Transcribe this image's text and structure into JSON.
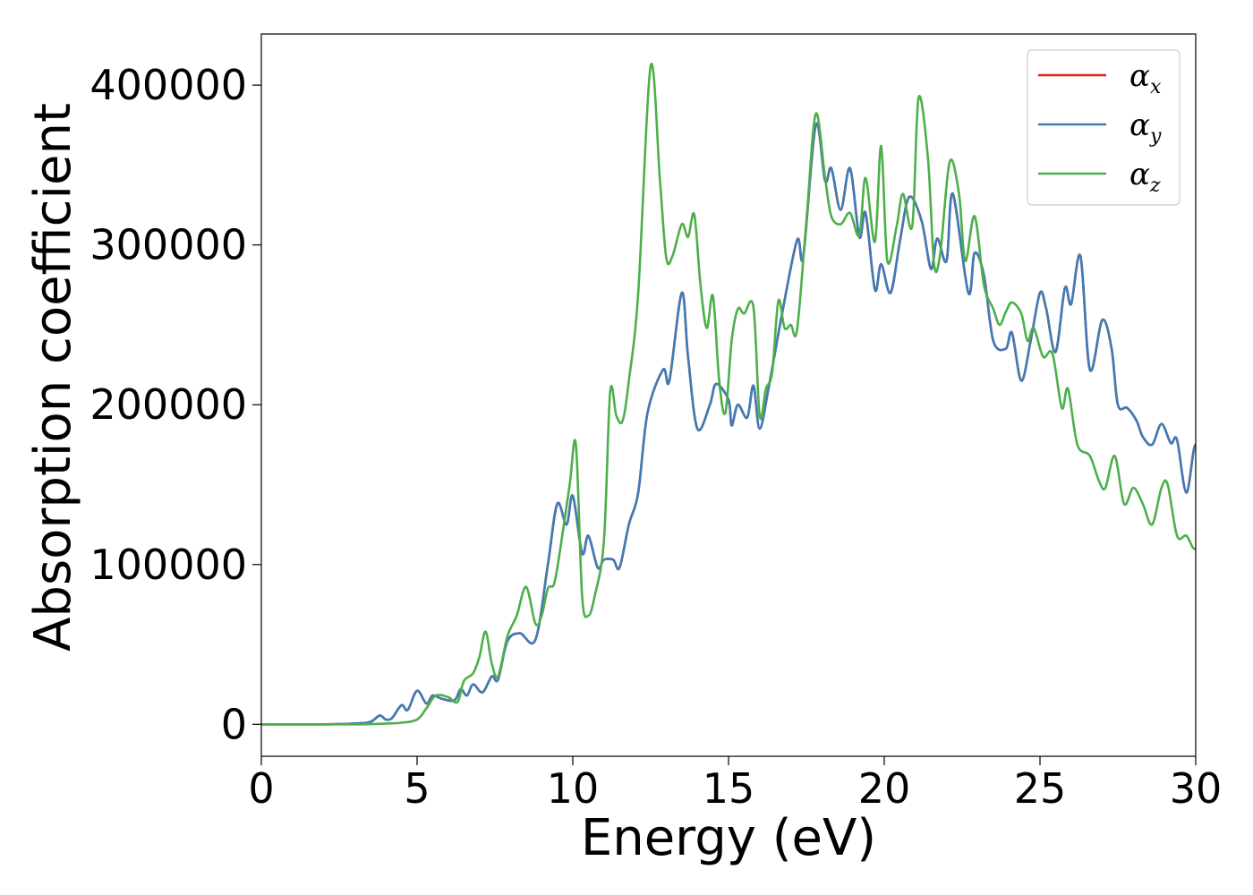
{
  "chart_data": {
    "type": "line",
    "xlabel": "Energy (eV)",
    "ylabel": "Absorption coefficient",
    "xlim": [
      0,
      30
    ],
    "ylim": [
      -20000,
      432000
    ],
    "xticks": [
      0,
      5,
      10,
      15,
      20,
      25,
      30
    ],
    "xtick_labels": [
      "0",
      "5",
      "10",
      "15",
      "20",
      "25",
      "30"
    ],
    "yticks": [
      0,
      100000,
      200000,
      300000,
      400000
    ],
    "ytick_labels": [
      "0",
      "100000",
      "200000",
      "300000",
      "400000"
    ],
    "grid": false,
    "legend_position": "top-right",
    "series": [
      {
        "name": "α_x",
        "legend_base": "α",
        "legend_sub": "x",
        "color": "#e41a1c",
        "points": [
          [
            0,
            0
          ],
          [
            2,
            0
          ],
          [
            3,
            500
          ],
          [
            3.5,
            1500
          ],
          [
            3.8,
            5500
          ],
          [
            4.0,
            3000
          ],
          [
            4.2,
            4000
          ],
          [
            4.5,
            12000
          ],
          [
            4.7,
            9000
          ],
          [
            5.0,
            21000
          ],
          [
            5.3,
            13000
          ],
          [
            5.5,
            18000
          ],
          [
            5.8,
            16000
          ],
          [
            6.2,
            15000
          ],
          [
            6.4,
            22000
          ],
          [
            6.6,
            18000
          ],
          [
            6.8,
            25000
          ],
          [
            7.1,
            20000
          ],
          [
            7.4,
            30000
          ],
          [
            7.6,
            28000
          ],
          [
            7.9,
            52000
          ],
          [
            8.3,
            57000
          ],
          [
            8.8,
            53000
          ],
          [
            9.2,
            100000
          ],
          [
            9.5,
            138000
          ],
          [
            9.8,
            125000
          ],
          [
            10.0,
            143000
          ],
          [
            10.3,
            107000
          ],
          [
            10.5,
            118000
          ],
          [
            10.8,
            98000
          ],
          [
            11.0,
            103000
          ],
          [
            11.3,
            103000
          ],
          [
            11.5,
            98000
          ],
          [
            11.8,
            125000
          ],
          [
            12.1,
            145000
          ],
          [
            12.4,
            195000
          ],
          [
            12.9,
            222000
          ],
          [
            13.1,
            215000
          ],
          [
            13.5,
            270000
          ],
          [
            13.7,
            230000
          ],
          [
            14.0,
            185000
          ],
          [
            14.4,
            200000
          ],
          [
            14.6,
            213000
          ],
          [
            15.0,
            203000
          ],
          [
            15.1,
            187000
          ],
          [
            15.3,
            200000
          ],
          [
            15.6,
            192000
          ],
          [
            15.8,
            212000
          ],
          [
            16.0,
            185000
          ],
          [
            16.3,
            212000
          ],
          [
            16.7,
            255000
          ],
          [
            17.2,
            303000
          ],
          [
            17.4,
            293000
          ],
          [
            17.8,
            375000
          ],
          [
            18.1,
            340000
          ],
          [
            18.3,
            348000
          ],
          [
            18.6,
            322000
          ],
          [
            18.9,
            348000
          ],
          [
            19.2,
            305000
          ],
          [
            19.4,
            320000
          ],
          [
            19.7,
            272000
          ],
          [
            19.9,
            288000
          ],
          [
            20.2,
            270000
          ],
          [
            20.5,
            302000
          ],
          [
            20.8,
            330000
          ],
          [
            21.2,
            315000
          ],
          [
            21.5,
            285000
          ],
          [
            21.7,
            304000
          ],
          [
            22.0,
            290000
          ],
          [
            22.2,
            332000
          ],
          [
            22.7,
            270000
          ],
          [
            22.9,
            295000
          ],
          [
            23.2,
            281000
          ],
          [
            23.5,
            240000
          ],
          [
            23.9,
            235000
          ],
          [
            24.1,
            245000
          ],
          [
            24.4,
            215000
          ],
          [
            24.7,
            240000
          ],
          [
            25.0,
            270000
          ],
          [
            25.2,
            260000
          ],
          [
            25.5,
            233000
          ],
          [
            25.8,
            273000
          ],
          [
            26.0,
            263000
          ],
          [
            26.3,
            293000
          ],
          [
            26.6,
            222000
          ],
          [
            27.0,
            253000
          ],
          [
            27.3,
            235000
          ],
          [
            27.5,
            200000
          ],
          [
            27.8,
            198000
          ],
          [
            28.1,
            190000
          ],
          [
            28.3,
            180000
          ],
          [
            28.6,
            175000
          ],
          [
            28.9,
            188000
          ],
          [
            29.2,
            176000
          ],
          [
            29.4,
            178000
          ],
          [
            29.7,
            145000
          ],
          [
            30.0,
            175000
          ],
          [
            30.3,
            145000
          ]
        ]
      },
      {
        "name": "α_y",
        "legend_base": "α",
        "legend_sub": "y",
        "color": "#3e7cb8",
        "points": [
          [
            0,
            0
          ],
          [
            2,
            0
          ],
          [
            3,
            500
          ],
          [
            3.5,
            1500
          ],
          [
            3.8,
            5500
          ],
          [
            4.0,
            3000
          ],
          [
            4.2,
            4000
          ],
          [
            4.5,
            12000
          ],
          [
            4.7,
            9000
          ],
          [
            5.0,
            21000
          ],
          [
            5.3,
            13000
          ],
          [
            5.5,
            18000
          ],
          [
            5.8,
            16000
          ],
          [
            6.2,
            15000
          ],
          [
            6.4,
            22000
          ],
          [
            6.6,
            18000
          ],
          [
            6.8,
            25000
          ],
          [
            7.1,
            20000
          ],
          [
            7.4,
            30000
          ],
          [
            7.6,
            28000
          ],
          [
            7.9,
            52000
          ],
          [
            8.3,
            57000
          ],
          [
            8.8,
            53000
          ],
          [
            9.2,
            100000
          ],
          [
            9.5,
            138000
          ],
          [
            9.8,
            125000
          ],
          [
            10.0,
            143000
          ],
          [
            10.3,
            107000
          ],
          [
            10.5,
            118000
          ],
          [
            10.8,
            98000
          ],
          [
            11.0,
            103000
          ],
          [
            11.3,
            103000
          ],
          [
            11.5,
            98000
          ],
          [
            11.8,
            125000
          ],
          [
            12.1,
            145000
          ],
          [
            12.4,
            195000
          ],
          [
            12.9,
            222000
          ],
          [
            13.1,
            215000
          ],
          [
            13.5,
            270000
          ],
          [
            13.7,
            230000
          ],
          [
            14.0,
            185000
          ],
          [
            14.4,
            200000
          ],
          [
            14.6,
            213000
          ],
          [
            15.0,
            203000
          ],
          [
            15.1,
            187000
          ],
          [
            15.3,
            200000
          ],
          [
            15.6,
            192000
          ],
          [
            15.8,
            212000
          ],
          [
            16.0,
            185000
          ],
          [
            16.3,
            212000
          ],
          [
            16.7,
            255000
          ],
          [
            17.2,
            303000
          ],
          [
            17.4,
            293000
          ],
          [
            17.8,
            375000
          ],
          [
            18.1,
            340000
          ],
          [
            18.3,
            348000
          ],
          [
            18.6,
            322000
          ],
          [
            18.9,
            348000
          ],
          [
            19.2,
            305000
          ],
          [
            19.4,
            320000
          ],
          [
            19.7,
            272000
          ],
          [
            19.9,
            288000
          ],
          [
            20.2,
            270000
          ],
          [
            20.5,
            302000
          ],
          [
            20.8,
            330000
          ],
          [
            21.2,
            315000
          ],
          [
            21.5,
            285000
          ],
          [
            21.7,
            304000
          ],
          [
            22.0,
            290000
          ],
          [
            22.2,
            332000
          ],
          [
            22.7,
            270000
          ],
          [
            22.9,
            295000
          ],
          [
            23.2,
            281000
          ],
          [
            23.5,
            240000
          ],
          [
            23.9,
            235000
          ],
          [
            24.1,
            245000
          ],
          [
            24.4,
            215000
          ],
          [
            24.7,
            240000
          ],
          [
            25.0,
            270000
          ],
          [
            25.2,
            260000
          ],
          [
            25.5,
            233000
          ],
          [
            25.8,
            273000
          ],
          [
            26.0,
            263000
          ],
          [
            26.3,
            293000
          ],
          [
            26.6,
            222000
          ],
          [
            27.0,
            253000
          ],
          [
            27.3,
            235000
          ],
          [
            27.5,
            200000
          ],
          [
            27.8,
            198000
          ],
          [
            28.1,
            190000
          ],
          [
            28.3,
            180000
          ],
          [
            28.6,
            175000
          ],
          [
            28.9,
            188000
          ],
          [
            29.2,
            176000
          ],
          [
            29.4,
            178000
          ],
          [
            29.7,
            145000
          ],
          [
            30.0,
            175000
          ],
          [
            30.3,
            145000
          ]
        ]
      },
      {
        "name": "α_z",
        "legend_base": "α",
        "legend_sub": "z",
        "color": "#4daf4a",
        "points": [
          [
            0,
            0
          ],
          [
            3,
            0
          ],
          [
            4,
            500
          ],
          [
            4.5,
            1000
          ],
          [
            5.0,
            3000
          ],
          [
            5.3,
            10000
          ],
          [
            5.6,
            18000
          ],
          [
            6.0,
            17000
          ],
          [
            6.3,
            14000
          ],
          [
            6.5,
            27000
          ],
          [
            6.8,
            32000
          ],
          [
            7.0,
            42000
          ],
          [
            7.2,
            58000
          ],
          [
            7.4,
            38000
          ],
          [
            7.6,
            30000
          ],
          [
            7.9,
            55000
          ],
          [
            8.2,
            68000
          ],
          [
            8.5,
            86000
          ],
          [
            8.8,
            63000
          ],
          [
            9.0,
            68000
          ],
          [
            9.2,
            85000
          ],
          [
            9.4,
            88000
          ],
          [
            9.6,
            110000
          ],
          [
            9.9,
            150000
          ],
          [
            10.1,
            175000
          ],
          [
            10.3,
            80000
          ],
          [
            10.5,
            68000
          ],
          [
            10.7,
            80000
          ],
          [
            11.0,
            115000
          ],
          [
            11.2,
            208000
          ],
          [
            11.4,
            193000
          ],
          [
            11.6,
            190000
          ],
          [
            11.8,
            215000
          ],
          [
            12.1,
            270000
          ],
          [
            12.5,
            412000
          ],
          [
            12.8,
            340000
          ],
          [
            13.0,
            292000
          ],
          [
            13.2,
            293000
          ],
          [
            13.5,
            313000
          ],
          [
            13.7,
            305000
          ],
          [
            13.9,
            319000
          ],
          [
            14.1,
            275000
          ],
          [
            14.3,
            248000
          ],
          [
            14.5,
            268000
          ],
          [
            14.7,
            215000
          ],
          [
            14.9,
            195000
          ],
          [
            15.1,
            240000
          ],
          [
            15.3,
            260000
          ],
          [
            15.5,
            257000
          ],
          [
            15.8,
            261000
          ],
          [
            16.0,
            193000
          ],
          [
            16.2,
            210000
          ],
          [
            16.4,
            220000
          ],
          [
            16.6,
            265000
          ],
          [
            16.8,
            248000
          ],
          [
            17.0,
            250000
          ],
          [
            17.2,
            247000
          ],
          [
            17.5,
            315000
          ],
          [
            17.8,
            382000
          ],
          [
            18.1,
            342000
          ],
          [
            18.3,
            318000
          ],
          [
            18.6,
            313000
          ],
          [
            18.9,
            320000
          ],
          [
            19.2,
            306000
          ],
          [
            19.4,
            342000
          ],
          [
            19.7,
            302000
          ],
          [
            19.9,
            362000
          ],
          [
            20.1,
            290000
          ],
          [
            20.4,
            312000
          ],
          [
            20.6,
            332000
          ],
          [
            20.9,
            312000
          ],
          [
            21.1,
            392000
          ],
          [
            21.4,
            355000
          ],
          [
            21.6,
            288000
          ],
          [
            21.8,
            295000
          ],
          [
            22.1,
            352000
          ],
          [
            22.4,
            332000
          ],
          [
            22.6,
            290000
          ],
          [
            22.9,
            318000
          ],
          [
            23.2,
            275000
          ],
          [
            23.5,
            260000
          ],
          [
            23.7,
            250000
          ],
          [
            23.9,
            258000
          ],
          [
            24.1,
            264000
          ],
          [
            24.4,
            257000
          ],
          [
            24.6,
            240000
          ],
          [
            24.8,
            248000
          ],
          [
            25.1,
            230000
          ],
          [
            25.4,
            232000
          ],
          [
            25.7,
            198000
          ],
          [
            25.9,
            210000
          ],
          [
            26.2,
            175000
          ],
          [
            26.6,
            168000
          ],
          [
            26.9,
            152000
          ],
          [
            27.1,
            148000
          ],
          [
            27.4,
            168000
          ],
          [
            27.7,
            138000
          ],
          [
            28.0,
            148000
          ],
          [
            28.3,
            138000
          ],
          [
            28.6,
            125000
          ],
          [
            28.9,
            148000
          ],
          [
            29.1,
            150000
          ],
          [
            29.4,
            118000
          ],
          [
            29.7,
            118000
          ],
          [
            30.0,
            110000
          ],
          [
            30.3,
            130000
          ]
        ]
      }
    ]
  }
}
